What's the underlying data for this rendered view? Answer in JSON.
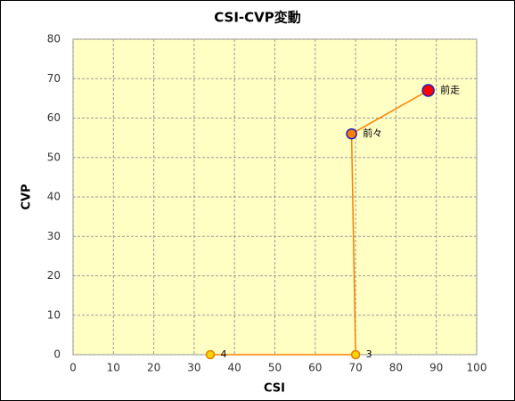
{
  "chart_data": {
    "type": "line-scatter",
    "title": "CSI-CVP変動",
    "x_label": "CSI",
    "y_label": "CVP",
    "xlim": [
      0,
      100
    ],
    "xticks": [
      0,
      10,
      20,
      30,
      40,
      50,
      60,
      70,
      80,
      90,
      100
    ],
    "ylim": [
      0,
      80
    ],
    "yticks": [
      0,
      10,
      20,
      30,
      40,
      50,
      60,
      70,
      80
    ],
    "grid": true,
    "series": [
      {
        "x": [
          34,
          70,
          69,
          88
        ],
        "y": [
          0,
          0,
          56,
          67
        ],
        "color": "#ff8000",
        "point_labels": [
          "4",
          "3",
          "前々",
          "前走"
        ],
        "point_colors": [
          "#ffd200",
          "#ffd200",
          "#ff8000",
          "#ff0000"
        ],
        "edge_colors": [
          "#e08000",
          "#e08000",
          "#2020c0",
          "#2020c0"
        ]
      }
    ]
  }
}
